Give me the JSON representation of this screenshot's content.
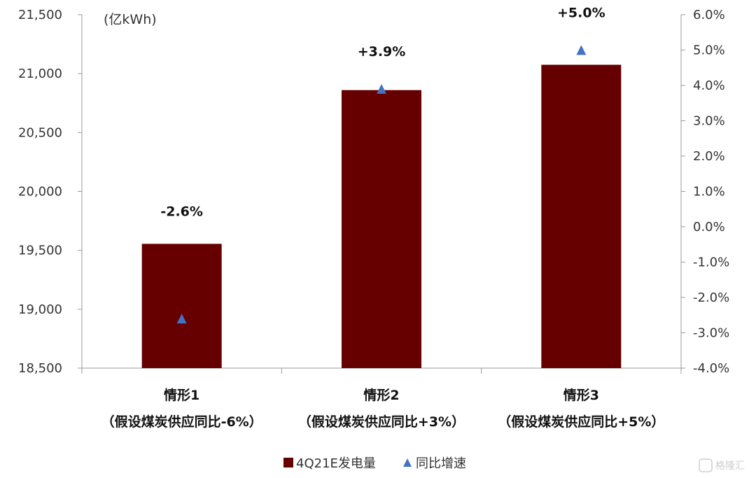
{
  "chart_data": {
    "type": "bar",
    "unit_label": "(亿kWh)",
    "categories": [
      [
        "情形1",
        "（假设煤炭供应同比-6%）"
      ],
      [
        "情形2",
        "（假设煤炭供应同比+3%）"
      ],
      [
        "情形3",
        "（假设煤炭供应同比+5%）"
      ]
    ],
    "series": [
      {
        "name": "4Q21E发电量",
        "type": "bar",
        "axis": "left",
        "color": "#660000",
        "values": [
          19555,
          20860,
          21075
        ]
      },
      {
        "name": "同比增速",
        "type": "scatter",
        "marker": "triangle",
        "axis": "right",
        "color": "#4472C4",
        "values": [
          -2.6,
          3.9,
          5.0
        ]
      }
    ],
    "data_labels": [
      "-2.6%",
      "+3.9%",
      "+5.0%"
    ],
    "y_left": {
      "min": 18500,
      "max": 21500,
      "ticks": [
        "18,500",
        "19,000",
        "19,500",
        "20,000",
        "20,500",
        "21,000",
        "21,500"
      ],
      "tick_values": [
        18500,
        19000,
        19500,
        20000,
        20500,
        21000,
        21500
      ]
    },
    "y_right": {
      "min": -4,
      "max": 6,
      "ticks": [
        "-4.0%",
        "-3.0%",
        "-2.0%",
        "-1.0%",
        "0.0%",
        "1.0%",
        "2.0%",
        "3.0%",
        "4.0%",
        "5.0%",
        "6.0%"
      ],
      "tick_values": [
        -4,
        -3,
        -2,
        -1,
        0,
        1,
        2,
        3,
        4,
        5,
        6
      ]
    },
    "grid": false,
    "legend": "bottom-center"
  },
  "watermark": "格隆汇"
}
